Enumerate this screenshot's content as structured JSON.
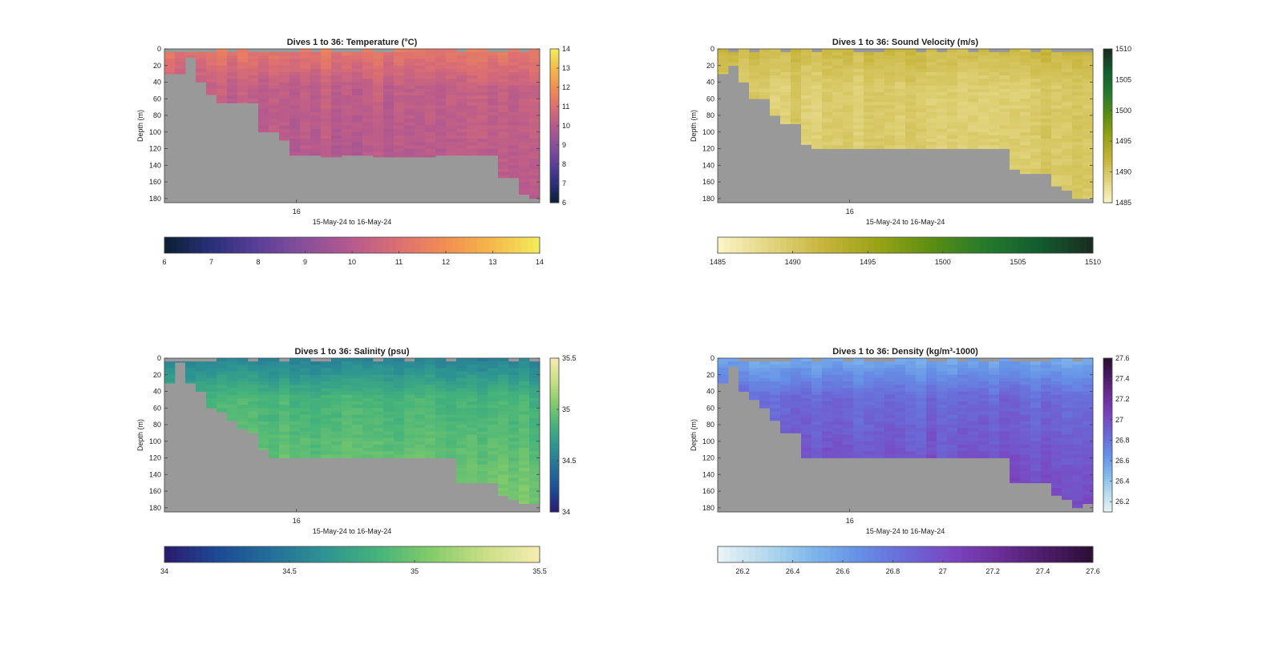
{
  "figure": {
    "xlabel": "15-May-24 to 16-May-24",
    "ylabel": "Depth (m)",
    "x_ticks": [
      "16"
    ],
    "y_ticks": [
      "0",
      "20",
      "40",
      "60",
      "80",
      "100",
      "120",
      "140",
      "160",
      "180"
    ]
  },
  "chart_data": [
    {
      "id": "temperature",
      "type": "heatmap",
      "title": "Dives 1 to 36: Temperature (°C)",
      "xlabel": "15-May-24 to 16-May-24",
      "ylabel": "Depth (m)",
      "ylim": [
        185,
        0
      ],
      "n_dives": 36,
      "bottom_depth_m": [
        30,
        30,
        10,
        40,
        55,
        65,
        65,
        65,
        65,
        100,
        100,
        110,
        128,
        128,
        128,
        130,
        130,
        128,
        128,
        128,
        130,
        130,
        130,
        130,
        130,
        130,
        128,
        128,
        128,
        128,
        128,
        128,
        155,
        155,
        175,
        180
      ],
      "value_range": [
        6,
        14
      ],
      "value_profile": {
        "surface": 11.3,
        "mid": 10.3,
        "bottom": 9.9
      },
      "colorbar_vertical_ticks": [
        "6",
        "7",
        "8",
        "9",
        "10",
        "11",
        "12",
        "13",
        "14"
      ],
      "colorbar_horizontal_ticks": [
        "6",
        "7",
        "8",
        "9",
        "10",
        "11",
        "12",
        "13",
        "14"
      ],
      "colormap": [
        "#0b1f33",
        "#2a2f7a",
        "#5a3f9a",
        "#8a4f9a",
        "#b65a8e",
        "#dc6f72",
        "#f28e52",
        "#f5b94a",
        "#f3ec5a"
      ]
    },
    {
      "id": "sound_velocity",
      "type": "heatmap",
      "title": "Dives 1 to 36: Sound Velocity (m/s)",
      "xlabel": "15-May-24 to 16-May-24",
      "ylabel": "Depth (m)",
      "ylim": [
        185,
        0
      ],
      "n_dives": 36,
      "bottom_depth_m": [
        30,
        20,
        40,
        60,
        60,
        80,
        90,
        90,
        115,
        120,
        120,
        120,
        120,
        120,
        120,
        120,
        120,
        120,
        120,
        120,
        120,
        120,
        120,
        120,
        120,
        120,
        120,
        120,
        145,
        150,
        150,
        150,
        165,
        170,
        180,
        180
      ],
      "value_range": [
        1485,
        1510
      ],
      "value_profile": {
        "surface": 1491.5,
        "mid": 1489.5,
        "bottom": 1489.6
      },
      "colorbar_vertical_ticks": [
        "1485",
        "1490",
        "1495",
        "1500",
        "1505",
        "1510"
      ],
      "colorbar_horizontal_ticks": [
        "1485",
        "1490",
        "1495",
        "1500",
        "1505",
        "1510"
      ],
      "colormap": [
        "#fbf5c8",
        "#e2d47e",
        "#c6b43a",
        "#98a315",
        "#5b8d12",
        "#257a2c",
        "#125c30",
        "#1a2b1e"
      ]
    },
    {
      "id": "salinity",
      "type": "heatmap",
      "title": "Dives 1 to 36: Salinity (psu)",
      "xlabel": "15-May-24 to 16-May-24",
      "ylabel": "Depth (m)",
      "ylim": [
        185,
        0
      ],
      "n_dives": 36,
      "bottom_depth_m": [
        30,
        5,
        30,
        40,
        60,
        65,
        75,
        85,
        90,
        110,
        120,
        120,
        120,
        120,
        120,
        120,
        120,
        120,
        120,
        120,
        120,
        120,
        120,
        120,
        120,
        120,
        120,
        120,
        150,
        150,
        150,
        150,
        165,
        170,
        175,
        175
      ],
      "value_range": [
        34,
        35.5
      ],
      "value_profile": {
        "surface": 34.55,
        "mid": 34.85,
        "bottom": 35.05
      },
      "colorbar_vertical_ticks": [
        "34",
        "34.5",
        "35",
        "35.5"
      ],
      "colorbar_horizontal_ticks": [
        "34",
        "34.5",
        "35",
        "35.5"
      ],
      "colormap": [
        "#2b1a6e",
        "#1c4a95",
        "#246f99",
        "#2e9492",
        "#46b47a",
        "#86cc6a",
        "#cbdf86",
        "#f6ecb0"
      ]
    },
    {
      "id": "density",
      "type": "heatmap",
      "title": "Dives 1 to 36: Density (kg/m³-1000)",
      "xlabel": "15-May-24 to 16-May-24",
      "ylabel": "Depth (m)",
      "ylim": [
        185,
        0
      ],
      "n_dives": 36,
      "bottom_depth_m": [
        30,
        10,
        40,
        50,
        60,
        75,
        90,
        90,
        120,
        120,
        120,
        120,
        120,
        120,
        120,
        120,
        120,
        120,
        120,
        120,
        120,
        120,
        120,
        120,
        120,
        120,
        120,
        120,
        150,
        150,
        150,
        150,
        165,
        170,
        180,
        175
      ],
      "value_range": [
        26.1,
        27.6
      ],
      "value_profile": {
        "surface": 26.55,
        "mid": 26.85,
        "bottom": 27.05
      },
      "colorbar_vertical_ticks": [
        "26.2",
        "26.4",
        "26.6",
        "26.8",
        "27",
        "27.2",
        "27.4",
        "27.6"
      ],
      "colorbar_horizontal_ticks": [
        "26.2",
        "26.4",
        "26.6",
        "26.8",
        "27",
        "27.2",
        "27.4",
        "27.6"
      ],
      "colormap": [
        "#e9f4f6",
        "#b6daee",
        "#7fb8eb",
        "#6690e6",
        "#6a6ad8",
        "#7a46c0",
        "#6c2d99",
        "#4c1c68",
        "#2a0f35"
      ]
    }
  ]
}
